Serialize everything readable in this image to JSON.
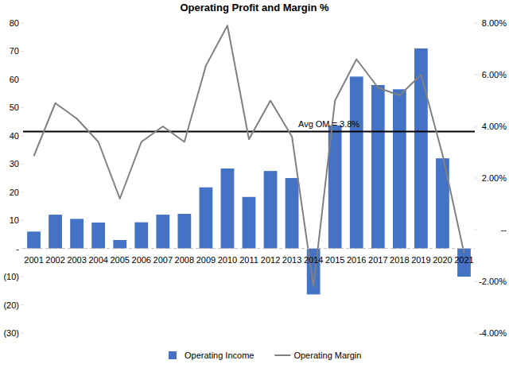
{
  "chart_data": {
    "type": "combo",
    "title": "Operating Profit and Margin %",
    "categories": [
      "2001",
      "2002",
      "2003",
      "2004",
      "2005",
      "2006",
      "2007",
      "2008",
      "2009",
      "2010",
      "2011",
      "2012",
      "2013",
      "2014",
      "2015",
      "2016",
      "2017",
      "2018",
      "2019",
      "2020",
      "2021"
    ],
    "series": [
      {
        "name": "Operating Income",
        "type": "bar",
        "color": "#4472c4",
        "values": [
          6,
          12,
          10.5,
          9.2,
          3,
          9.3,
          12,
          12.3,
          21.7,
          28.4,
          18.3,
          27.5,
          25,
          -16.3,
          43.7,
          61,
          58,
          56.5,
          71,
          32,
          -10
        ]
      },
      {
        "name": "Operating Margin",
        "type": "line",
        "axis": "y2",
        "color": "#808080",
        "values": [
          2.85,
          4.9,
          4.3,
          3.4,
          1.2,
          3.4,
          4.0,
          3.4,
          6.35,
          7.9,
          3.5,
          5.0,
          3.6,
          -2.2,
          5.0,
          6.6,
          5.5,
          5.2,
          6.0,
          2.9,
          -0.9
        ]
      }
    ],
    "ylim": [
      -30,
      80
    ],
    "yticks": [
      {
        "value": -30,
        "label": "(30)"
      },
      {
        "value": -20,
        "label": "(20)"
      },
      {
        "value": -10,
        "label": "(10)"
      },
      {
        "value": 0,
        "label": "-"
      },
      10,
      20,
      30,
      40,
      50,
      60,
      70,
      80
    ],
    "y2lim": [
      -4,
      8
    ],
    "y2ticks": [
      {
        "value": -4,
        "label": "-4.00%"
      },
      {
        "value": -2,
        "label": "-2.00%"
      },
      {
        "value": 0,
        "label": "--"
      },
      {
        "value": 2,
        "label": "2.00%"
      },
      {
        "value": 4,
        "label": "4.00%"
      },
      {
        "value": 6,
        "label": "6.00%"
      },
      {
        "value": 8,
        "label": "8.00%"
      }
    ],
    "annotations": [
      {
        "text": "Avg OM = 3.8%",
        "value": 3.8,
        "axis": "y2"
      }
    ],
    "grid": false,
    "legend": "bottom"
  }
}
